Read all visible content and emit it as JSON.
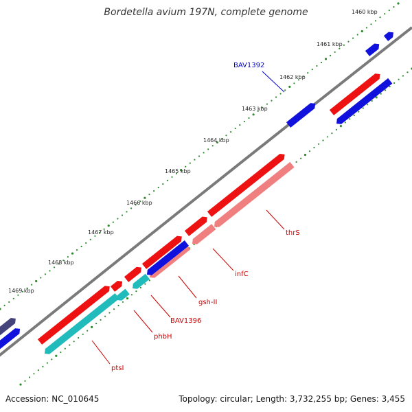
{
  "title": "Bordetella avium 197N, complete genome",
  "footer": {
    "accession": "Accession: NC_010645",
    "summary": "Topology: circular; Length: 3,732,255 bp; Genes: 3,455"
  },
  "ticks": [
    {
      "label": "1460 kbp",
      "kbp": 1460
    },
    {
      "label": "1461 kbp",
      "kbp": 1461
    },
    {
      "label": "1462 kbp",
      "kbp": 1462
    },
    {
      "label": "1463 kbp",
      "kbp": 1463
    },
    {
      "label": "1464 kbp",
      "kbp": 1464
    },
    {
      "label": "1465 kbp",
      "kbp": 1465
    },
    {
      "label": "1466 kbp",
      "kbp": 1466
    },
    {
      "label": "1467 kbp",
      "kbp": 1467
    },
    {
      "label": "1468 kbp",
      "kbp": 1468
    },
    {
      "label": "1469 kbp",
      "kbp": 1469
    }
  ],
  "gene_labels": [
    {
      "name": "BAV1392",
      "color": "#0000cc"
    },
    {
      "name": "thrS",
      "color": "#cc0000"
    },
    {
      "name": "infC",
      "color": "#cc0000"
    },
    {
      "name": "gsh-II",
      "color": "#cc0000"
    },
    {
      "name": "BAV1396",
      "color": "#cc0000"
    },
    {
      "name": "phbH",
      "color": "#cc0000"
    },
    {
      "name": "ptsI",
      "color": "#cc0000"
    }
  ],
  "colors": {
    "backbone": "#7a7a7a",
    "tick": "#2e8b2e",
    "forward_cds": "#ee1111",
    "reverse_cds": "#1111dd",
    "reverse_cds_dark": "#44447a",
    "rna_teal": "#22bbbb",
    "rna_pink": "#f08080"
  }
}
